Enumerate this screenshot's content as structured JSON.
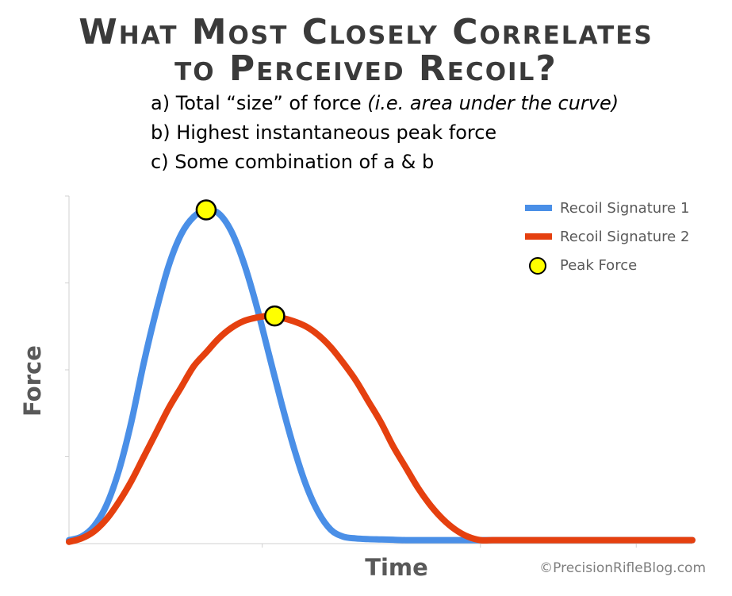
{
  "title": {
    "line1": "What Most Closely Correlates",
    "line2": "to Perceived Recoil?"
  },
  "questions": {
    "a_main": "a) Total “size” of force ",
    "a_note": "(i.e. area under the curve)",
    "b": "b) Highest instantaneous peak force",
    "c": "c) Some combination of a & b"
  },
  "credit": "©PrecisionRifleBlog.com",
  "chart_data": {
    "type": "line",
    "title": "",
    "xlabel": "Time",
    "ylabel": "Force",
    "xlim": [
      0,
      100
    ],
    "ylim": [
      0,
      100
    ],
    "grid": false,
    "legend_position": "top-right",
    "series": [
      {
        "name": "Recoil Signature 1",
        "color": "#4a8fe7",
        "x": [
          0,
          2,
          4,
          6,
          8,
          10,
          12,
          14,
          16,
          18,
          20,
          22,
          24,
          26,
          28,
          30,
          32,
          34,
          36,
          38,
          40,
          42,
          44,
          46,
          48,
          50,
          52,
          54,
          56,
          58,
          60,
          62,
          64,
          66,
          68,
          70,
          72,
          74,
          76,
          78,
          80,
          82,
          84,
          86,
          88,
          90,
          92,
          94,
          96,
          98,
          100
        ],
        "y": [
          1,
          2,
          5,
          11,
          21,
          35,
          52,
          67,
          80,
          89,
          94,
          96,
          95,
          90,
          81,
          69,
          55,
          41,
          28,
          17,
          9,
          4,
          2,
          1.5,
          1.3,
          1.2,
          1.1,
          1,
          1,
          1,
          1,
          1,
          1,
          1,
          1,
          1,
          1,
          1,
          1,
          1,
          1,
          1,
          1,
          1,
          1,
          1,
          1,
          1,
          1,
          1,
          1
        ]
      },
      {
        "name": "Recoil Signature 2",
        "color": "#e5400f",
        "x": [
          0,
          2,
          4,
          6,
          8,
          10,
          12,
          14,
          16,
          18,
          20,
          22,
          24,
          26,
          28,
          30,
          32,
          34,
          36,
          38,
          40,
          42,
          44,
          46,
          48,
          50,
          52,
          54,
          56,
          58,
          60,
          62,
          64,
          66,
          68,
          70,
          72,
          74,
          76,
          78,
          80,
          82,
          84,
          86,
          88,
          90,
          92,
          94,
          96,
          98,
          100
        ],
        "y": [
          0.5,
          1.5,
          3.5,
          7,
          12,
          18,
          25,
          32,
          39,
          45,
          51,
          55,
          59,
          62,
          64,
          65,
          65.5,
          65,
          64,
          62.5,
          60,
          56.5,
          52,
          47,
          41,
          35,
          28,
          22,
          16,
          11,
          7,
          4,
          2,
          1,
          1,
          1,
          1,
          1,
          1,
          1,
          1,
          1,
          1,
          1,
          1,
          1,
          1,
          1,
          1,
          1,
          1
        ]
      }
    ],
    "peaks": {
      "name": "Peak Force",
      "color": "#ffff00",
      "points": [
        {
          "x": 22,
          "y": 96
        },
        {
          "x": 33,
          "y": 65.5
        }
      ]
    }
  }
}
